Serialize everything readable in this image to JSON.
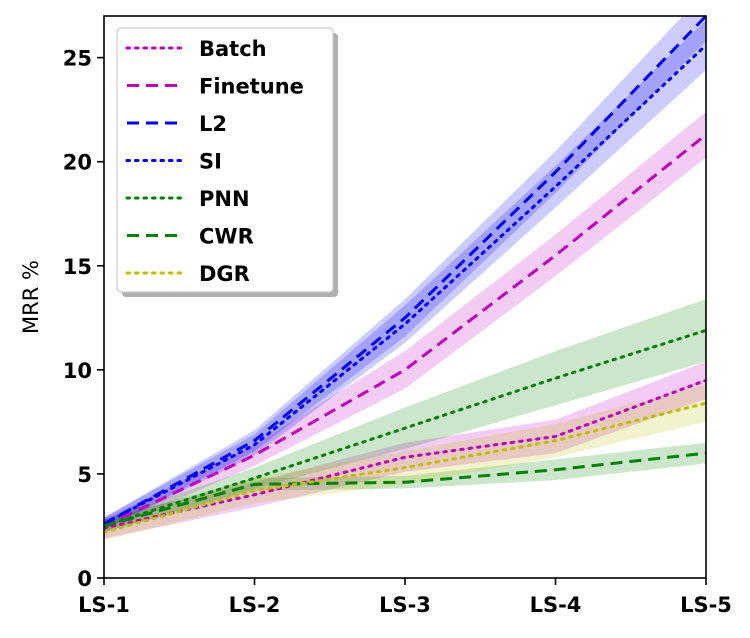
{
  "chart_data": {
    "type": "line",
    "title": "",
    "xlabel": "",
    "ylabel": "MRR %",
    "categories": [
      "LS-1",
      "LS-2",
      "LS-3",
      "LS-4",
      "LS-5"
    ],
    "ylim": [
      0,
      27
    ],
    "yticks": [
      0,
      5,
      10,
      15,
      20,
      25
    ],
    "grid": false,
    "legend_position": "top-left",
    "series": [
      {
        "name": "Batch",
        "color": "#bf00bf",
        "style": "dotted",
        "values": [
          2.4,
          4.0,
          5.8,
          6.8,
          9.5
        ],
        "band": [
          0.5,
          0.6,
          0.7,
          0.8,
          0.9
        ]
      },
      {
        "name": "Finetune",
        "color": "#bf00bf",
        "style": "dashed",
        "values": [
          2.5,
          5.9,
          10.0,
          15.5,
          21.3
        ],
        "band": [
          0.3,
          0.5,
          0.9,
          1.0,
          1.1
        ]
      },
      {
        "name": "L2",
        "color": "#0000ff",
        "style": "dashed",
        "values": [
          2.6,
          6.6,
          12.5,
          19.5,
          27.0
        ],
        "band": [
          0.3,
          0.5,
          0.9,
          1.0,
          1.2
        ]
      },
      {
        "name": "SI",
        "color": "#0000ff",
        "style": "dotted",
        "values": [
          2.6,
          6.4,
          12.2,
          18.8,
          25.6
        ],
        "band": [
          0.3,
          0.5,
          0.9,
          1.0,
          1.2
        ]
      },
      {
        "name": "PNN",
        "color": "#008000",
        "style": "dotted",
        "values": [
          2.5,
          4.8,
          7.2,
          9.6,
          11.9
        ],
        "band": [
          0.3,
          0.5,
          1.0,
          1.3,
          1.5
        ]
      },
      {
        "name": "CWR",
        "color": "#008000",
        "style": "dashed",
        "values": [
          2.5,
          4.5,
          4.6,
          5.2,
          6.0
        ],
        "band": [
          0.3,
          0.3,
          0.3,
          0.5,
          0.5
        ]
      },
      {
        "name": "DGR",
        "color": "#bfbf00",
        "style": "dotted",
        "values": [
          2.2,
          4.2,
          5.3,
          6.6,
          8.4
        ],
        "band": [
          0.4,
          0.6,
          0.8,
          0.8,
          0.9
        ]
      }
    ]
  }
}
